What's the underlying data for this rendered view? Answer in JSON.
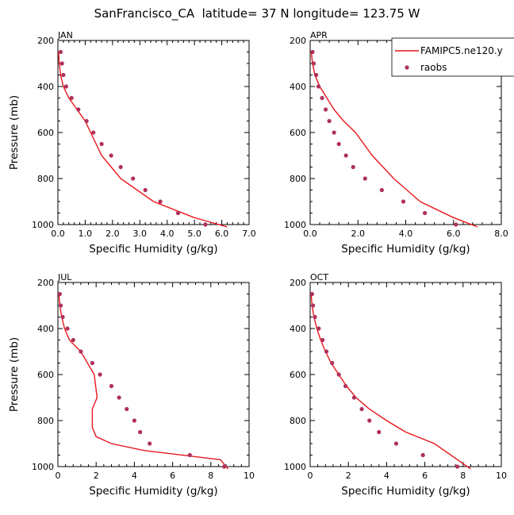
{
  "figure_title": "SanFrancisco_CA  latitude= 37 N longitude= 123.75 W",
  "legend": {
    "model_label": "FAMIPC5.ne120.y",
    "obs_label": "raobs"
  },
  "colors": {
    "model_line": "#e8171c",
    "obs_marker": "#b0305a",
    "axis": "#000000"
  },
  "chart_data": [
    {
      "type": "line",
      "panel": "JAN",
      "xlabel": "Specific Humidity (g/kg)",
      "ylabel": "Pressure (mb)",
      "xlim": [
        0,
        7
      ],
      "xticks": [
        0,
        1,
        2,
        3,
        4,
        5,
        6,
        7
      ],
      "xtick_labels": [
        "0.0",
        "1.0",
        "2.0",
        "3.0",
        "4.0",
        "5.0",
        "6.0",
        "7.0"
      ],
      "ylim": [
        1000,
        200
      ],
      "yticks": [
        200,
        400,
        600,
        800,
        1000
      ],
      "ytick_labels": [
        "200",
        "400",
        "600",
        "800",
        "1000"
      ],
      "model": {
        "name": "FAMIPC5.ne120.y",
        "x": [
          0.02,
          0.05,
          0.1,
          0.2,
          0.4,
          0.7,
          1.0,
          1.2,
          1.6,
          2.3,
          3.5,
          5.0,
          6.2
        ],
        "y": [
          250,
          300,
          350,
          400,
          450,
          500,
          550,
          600,
          700,
          800,
          900,
          970,
          1010
        ]
      },
      "obs": {
        "name": "raobs",
        "x": [
          0.1,
          0.15,
          0.2,
          0.3,
          0.5,
          0.75,
          1.05,
          1.3,
          1.6,
          1.95,
          2.3,
          2.75,
          3.2,
          3.75,
          4.4,
          5.4
        ],
        "y": [
          250,
          300,
          350,
          400,
          450,
          500,
          550,
          600,
          650,
          700,
          750,
          800,
          850,
          900,
          950,
          1000
        ]
      }
    },
    {
      "type": "line",
      "panel": "APR",
      "xlabel": "Specific Humidity (g/kg)",
      "ylabel": "",
      "xlim": [
        0,
        8
      ],
      "xticks": [
        0,
        2,
        4,
        6,
        8
      ],
      "xtick_labels": [
        "0.0",
        "2.0",
        "4.0",
        "6.0",
        "8.0"
      ],
      "ylim": [
        1000,
        200
      ],
      "yticks": [
        200,
        400,
        600,
        800,
        1000
      ],
      "ytick_labels": [
        "200",
        "400",
        "600",
        "800",
        "1000"
      ],
      "model": {
        "name": "FAMIPC5.ne120.y",
        "x": [
          0.05,
          0.1,
          0.2,
          0.4,
          0.7,
          1.0,
          1.4,
          1.9,
          2.6,
          3.5,
          4.6,
          6.0,
          7.0
        ],
        "y": [
          250,
          300,
          350,
          400,
          450,
          500,
          550,
          600,
          700,
          800,
          900,
          970,
          1010
        ]
      },
      "obs": {
        "name": "raobs",
        "x": [
          0.1,
          0.15,
          0.25,
          0.35,
          0.5,
          0.65,
          0.8,
          1.0,
          1.2,
          1.5,
          1.8,
          2.3,
          3.0,
          3.9,
          4.8,
          6.1
        ],
        "y": [
          250,
          300,
          350,
          400,
          450,
          500,
          550,
          600,
          650,
          700,
          750,
          800,
          850,
          900,
          950,
          1000
        ]
      }
    },
    {
      "type": "line",
      "panel": "JUL",
      "xlabel": "Specific Humidity (g/kg)",
      "ylabel": "Pressure (mb)",
      "xlim": [
        0,
        10
      ],
      "xticks": [
        0,
        2,
        4,
        6,
        8,
        10
      ],
      "xtick_labels": [
        "0",
        "2",
        "4",
        "6",
        "8",
        "10"
      ],
      "ylim": [
        1000,
        200
      ],
      "yticks": [
        200,
        400,
        600,
        800,
        1000
      ],
      "ytick_labels": [
        "200",
        "400",
        "600",
        "800",
        "1000"
      ],
      "model": {
        "name": "FAMIPC5.ne120.y",
        "x": [
          0.05,
          0.1,
          0.2,
          0.35,
          0.6,
          1.2,
          1.9,
          2.05,
          1.8,
          1.8,
          2.0,
          2.8,
          4.5,
          8.5,
          8.9
        ],
        "y": [
          250,
          300,
          350,
          400,
          450,
          500,
          600,
          700,
          750,
          830,
          870,
          900,
          930,
          970,
          1010
        ]
      },
      "obs": {
        "name": "raobs",
        "x": [
          0.1,
          0.15,
          0.25,
          0.5,
          0.8,
          1.2,
          1.8,
          2.2,
          2.8,
          3.2,
          3.6,
          4.0,
          4.3,
          4.8,
          6.9,
          8.7
        ],
        "y": [
          250,
          300,
          350,
          400,
          450,
          500,
          550,
          600,
          650,
          700,
          750,
          800,
          850,
          900,
          950,
          1000
        ]
      }
    },
    {
      "type": "line",
      "panel": "OCT",
      "xlabel": "Specific Humidity (g/kg)",
      "ylabel": "",
      "xlim": [
        0,
        10
      ],
      "xticks": [
        0,
        2,
        4,
        6,
        8,
        10
      ],
      "xtick_labels": [
        "0",
        "2",
        "4",
        "6",
        "8",
        "10"
      ],
      "ylim": [
        1000,
        200
      ],
      "yticks": [
        200,
        400,
        600,
        800,
        1000
      ],
      "ytick_labels": [
        "200",
        "400",
        "600",
        "800",
        "1000"
      ],
      "model": {
        "name": "FAMIPC5.ne120.y",
        "x": [
          0.05,
          0.1,
          0.2,
          0.35,
          0.55,
          0.8,
          1.1,
          1.5,
          1.9,
          2.4,
          3.1,
          4.0,
          5.0,
          6.5,
          8.4
        ],
        "y": [
          250,
          300,
          350,
          400,
          450,
          500,
          550,
          600,
          650,
          700,
          750,
          800,
          850,
          900,
          1010
        ]
      },
      "obs": {
        "name": "raobs",
        "x": [
          0.1,
          0.15,
          0.25,
          0.45,
          0.65,
          0.85,
          1.15,
          1.5,
          1.85,
          2.3,
          2.7,
          3.1,
          3.6,
          4.5,
          5.9,
          7.7
        ],
        "y": [
          250,
          300,
          350,
          400,
          450,
          500,
          550,
          600,
          650,
          700,
          750,
          800,
          850,
          900,
          950,
          1000
        ]
      }
    }
  ]
}
